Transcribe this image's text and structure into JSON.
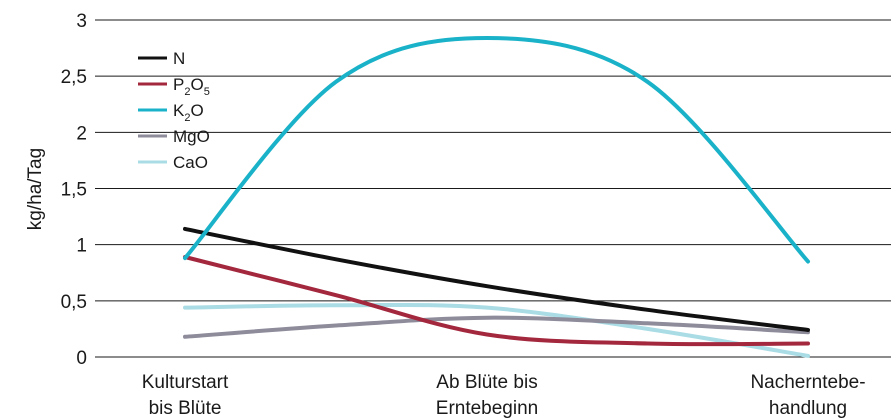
{
  "chart_data": {
    "type": "line",
    "title": "",
    "xlabel": "",
    "ylabel": "kg/ha/Tag",
    "ylim": [
      0,
      3
    ],
    "yticks": [
      {
        "value": 0,
        "label": "0"
      },
      {
        "value": 0.5,
        "label": "0,5"
      },
      {
        "value": 1,
        "label": "1"
      },
      {
        "value": 1.5,
        "label": "1,5"
      },
      {
        "value": 2,
        "label": "2"
      },
      {
        "value": 2.5,
        "label": "2,5"
      },
      {
        "value": 3,
        "label": "3"
      }
    ],
    "categories": [
      {
        "line1": "Kulturstart",
        "line2": "bis Blüte"
      },
      {
        "line1": "Ab Blüte bis",
        "line2": "Erntebeginn"
      },
      {
        "line1": "Nacherntebe-",
        "line2": "handlung"
      }
    ],
    "grid": "horizontal",
    "legend_position": "top-left",
    "series": [
      {
        "name": "N",
        "label_main": "N",
        "sub1": "",
        "mid": "",
        "sub2": "",
        "color": "#111111",
        "points": [
          [
            0,
            1.14
          ],
          [
            0.5,
            0.87
          ],
          [
            1,
            0.63
          ],
          [
            1.5,
            0.42
          ],
          [
            2,
            0.24
          ]
        ]
      },
      {
        "name": "P2O5",
        "label_main": "P",
        "sub1": "2",
        "mid": "O",
        "sub2": "5",
        "color": "#a3283e",
        "points": [
          [
            0,
            0.89
          ],
          [
            0.5,
            0.55
          ],
          [
            1,
            0.2
          ],
          [
            1.5,
            0.12
          ],
          [
            2,
            0.12
          ]
        ]
      },
      {
        "name": "K2O",
        "label_main": "K",
        "sub1": "2",
        "mid": "O",
        "sub2": "",
        "color": "#1ab2c8",
        "points": [
          [
            0,
            0.88
          ],
          [
            0.5,
            2.45
          ],
          [
            1,
            2.84
          ],
          [
            1.5,
            2.45
          ],
          [
            2,
            0.85
          ]
        ]
      },
      {
        "name": "MgO",
        "label_main": "MgO",
        "sub1": "",
        "mid": "",
        "sub2": "",
        "color": "#8e8b9b",
        "points": [
          [
            0,
            0.18
          ],
          [
            0.5,
            0.28
          ],
          [
            1,
            0.35
          ],
          [
            1.5,
            0.3
          ],
          [
            2,
            0.22
          ]
        ]
      },
      {
        "name": "CaO",
        "label_main": "CaO",
        "sub1": "",
        "mid": "",
        "sub2": "",
        "color": "#a9dce5",
        "points": [
          [
            0,
            0.44
          ],
          [
            0.5,
            0.46
          ],
          [
            1,
            0.44
          ],
          [
            1.5,
            0.25
          ],
          [
            2,
            0.01
          ]
        ]
      }
    ]
  }
}
